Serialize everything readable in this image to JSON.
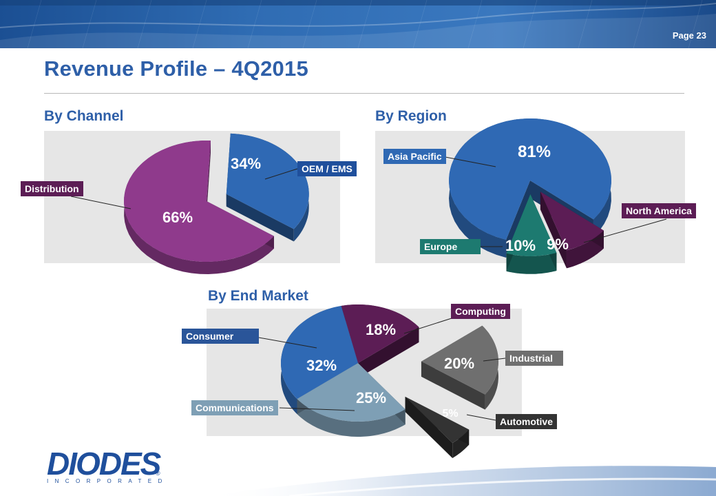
{
  "header": {
    "page_label": "Page 23"
  },
  "title": "Revenue Profile – 4Q2015",
  "colors": {
    "title_blue": "#2e5fa8",
    "blue": "#2f69b4",
    "purple": "#8f3a8c",
    "dark_purple": "#5c1d55",
    "teal": "#1d7a70",
    "slate": "#7e9fb5",
    "gray": "#6f6f6f",
    "dark_gray": "#333333"
  },
  "sections": {
    "channel": "By Channel",
    "region": "By Region",
    "end_market": "By End Market"
  },
  "chart_data": [
    {
      "type": "pie",
      "title": "By Channel",
      "categories": [
        "OEM / EMS",
        "Distribution"
      ],
      "values": [
        34,
        66
      ],
      "labels": [
        "34%",
        "66%"
      ]
    },
    {
      "type": "pie",
      "title": "By Region",
      "categories": [
        "Asia Pacific",
        "North America",
        "Europe"
      ],
      "values": [
        81,
        9,
        10
      ],
      "labels": [
        "81%",
        "9%",
        "10%"
      ]
    },
    {
      "type": "pie",
      "title": "By End Market",
      "categories": [
        "Computing",
        "Industrial",
        "Automotive",
        "Communications",
        "Consumer"
      ],
      "values": [
        18,
        20,
        5,
        25,
        32
      ],
      "labels": [
        "18%",
        "20%",
        "5%",
        "25%",
        "32%"
      ]
    }
  ],
  "logo": {
    "text": "DIODES",
    "sub": "INCORPORATED",
    "reg": "®"
  }
}
